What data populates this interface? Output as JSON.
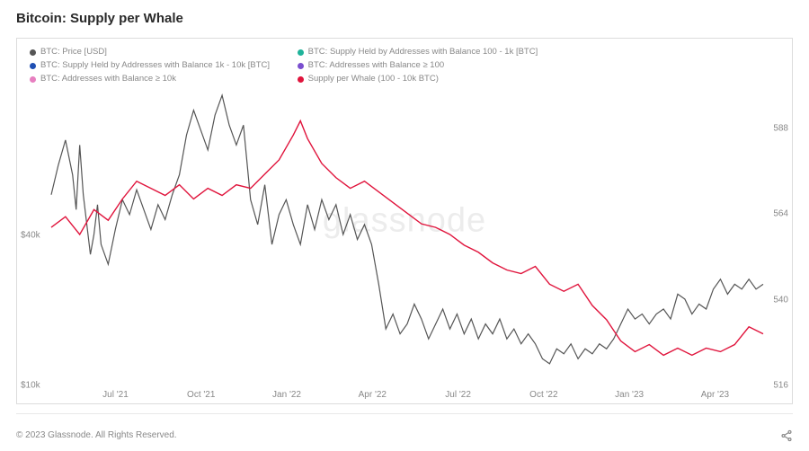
{
  "title": "Bitcoin: Supply per Whale",
  "footer": "© 2023 Glassnode. All Rights Reserved.",
  "watermark": "glassnode",
  "chart": {
    "type": "line",
    "background_color": "#ffffff",
    "border_color": "#dcdcdc",
    "grid_color": "transparent",
    "watermark_color": "rgba(150,150,150,0.18)",
    "legend": {
      "position": "top-left",
      "fontsize": 9.5,
      "text_color": "#888888",
      "columns": [
        [
          {
            "label": "BTC: Price [USD]",
            "color": "#555555"
          },
          {
            "label": "BTC: Supply Held by Addresses with Balance 1k - 10k [BTC]",
            "color": "#1f4fb3"
          },
          {
            "label": "BTC: Addresses with Balance ≥ 10k",
            "color": "#e77fc0"
          }
        ],
        [
          {
            "label": "BTC: Supply Held by Addresses with Balance 100 - 1k [BTC]",
            "color": "#1fb39a"
          },
          {
            "label": "BTC: Addresses with Balance ≥ 100",
            "color": "#7a4fcf"
          },
          {
            "label": "Supply per Whale (100 - 10k BTC)",
            "color": "#e0143c"
          }
        ]
      ]
    },
    "y_left": {
      "label_prefix": "$",
      "label_suffix": "k",
      "min": 10,
      "max": 70,
      "ticks": [
        10,
        40
      ],
      "tick_labels": [
        "$10k",
        "$40k"
      ],
      "fontsize": 10,
      "text_color": "#888888"
    },
    "y_right": {
      "min": 516,
      "max": 600,
      "ticks": [
        516,
        540,
        564,
        588
      ],
      "tick_labels": [
        "516",
        "540",
        "564",
        "588"
      ],
      "fontsize": 10,
      "text_color": "#888888"
    },
    "x_axis": {
      "ticks": [
        "Jul '21",
        "Oct '21",
        "Jan '22",
        "Apr '22",
        "Jul '22",
        "Oct '22",
        "Jan '23",
        "Apr '23"
      ],
      "positions_pct": [
        9,
        21,
        33,
        45,
        57,
        69,
        81,
        93
      ],
      "fontsize": 10,
      "text_color": "#888888"
    },
    "series": [
      {
        "name": "price",
        "axis": "left",
        "color": "#555555",
        "line_width": 1.2,
        "points": [
          [
            0,
            48
          ],
          [
            1,
            54
          ],
          [
            2,
            59
          ],
          [
            3,
            52
          ],
          [
            3.5,
            45
          ],
          [
            4,
            58
          ],
          [
            4.5,
            48
          ],
          [
            5,
            42
          ],
          [
            5.5,
            36
          ],
          [
            6,
            40
          ],
          [
            6.5,
            46
          ],
          [
            7,
            38
          ],
          [
            8,
            34
          ],
          [
            9,
            41
          ],
          [
            10,
            47
          ],
          [
            11,
            44
          ],
          [
            12,
            49
          ],
          [
            13,
            45
          ],
          [
            14,
            41
          ],
          [
            15,
            46
          ],
          [
            16,
            43
          ],
          [
            17,
            48
          ],
          [
            18,
            52
          ],
          [
            19,
            60
          ],
          [
            20,
            65
          ],
          [
            21,
            61
          ],
          [
            22,
            57
          ],
          [
            23,
            64
          ],
          [
            24,
            68
          ],
          [
            25,
            62
          ],
          [
            26,
            58
          ],
          [
            27,
            62
          ],
          [
            28,
            47
          ],
          [
            29,
            42
          ],
          [
            30,
            50
          ],
          [
            31,
            38
          ],
          [
            32,
            44
          ],
          [
            33,
            47
          ],
          [
            34,
            42
          ],
          [
            35,
            38
          ],
          [
            36,
            46
          ],
          [
            37,
            41
          ],
          [
            38,
            47
          ],
          [
            39,
            43
          ],
          [
            40,
            46
          ],
          [
            41,
            40
          ],
          [
            42,
            44
          ],
          [
            43,
            39
          ],
          [
            44,
            42
          ],
          [
            45,
            38
          ],
          [
            46,
            30
          ],
          [
            47,
            21
          ],
          [
            48,
            24
          ],
          [
            49,
            20
          ],
          [
            50,
            22
          ],
          [
            51,
            26
          ],
          [
            52,
            23
          ],
          [
            53,
            19
          ],
          [
            54,
            22
          ],
          [
            55,
            25
          ],
          [
            56,
            21
          ],
          [
            57,
            24
          ],
          [
            58,
            20
          ],
          [
            59,
            23
          ],
          [
            60,
            19
          ],
          [
            61,
            22
          ],
          [
            62,
            20
          ],
          [
            63,
            23
          ],
          [
            64,
            19
          ],
          [
            65,
            21
          ],
          [
            66,
            18
          ],
          [
            67,
            20
          ],
          [
            68,
            18
          ],
          [
            69,
            15
          ],
          [
            70,
            14
          ],
          [
            71,
            17
          ],
          [
            72,
            16
          ],
          [
            73,
            18
          ],
          [
            74,
            15
          ],
          [
            75,
            17
          ],
          [
            76,
            16
          ],
          [
            77,
            18
          ],
          [
            78,
            17
          ],
          [
            79,
            19
          ],
          [
            80,
            22
          ],
          [
            81,
            25
          ],
          [
            82,
            23
          ],
          [
            83,
            24
          ],
          [
            84,
            22
          ],
          [
            85,
            24
          ],
          [
            86,
            25
          ],
          [
            87,
            23
          ],
          [
            88,
            28
          ],
          [
            89,
            27
          ],
          [
            90,
            24
          ],
          [
            91,
            26
          ],
          [
            92,
            25
          ],
          [
            93,
            29
          ],
          [
            94,
            31
          ],
          [
            95,
            28
          ],
          [
            96,
            30
          ],
          [
            97,
            29
          ],
          [
            98,
            31
          ],
          [
            99,
            29
          ],
          [
            100,
            30
          ]
        ]
      },
      {
        "name": "supply_per_whale",
        "axis": "right",
        "color": "#e0143c",
        "line_width": 1.4,
        "points": [
          [
            0,
            560
          ],
          [
            2,
            563
          ],
          [
            4,
            558
          ],
          [
            6,
            565
          ],
          [
            8,
            562
          ],
          [
            10,
            568
          ],
          [
            12,
            573
          ],
          [
            14,
            571
          ],
          [
            16,
            569
          ],
          [
            18,
            572
          ],
          [
            20,
            568
          ],
          [
            22,
            571
          ],
          [
            24,
            569
          ],
          [
            26,
            572
          ],
          [
            28,
            571
          ],
          [
            30,
            575
          ],
          [
            32,
            579
          ],
          [
            34,
            586
          ],
          [
            35,
            590
          ],
          [
            36,
            585
          ],
          [
            38,
            578
          ],
          [
            40,
            574
          ],
          [
            42,
            571
          ],
          [
            44,
            573
          ],
          [
            46,
            570
          ],
          [
            48,
            567
          ],
          [
            50,
            564
          ],
          [
            52,
            561
          ],
          [
            54,
            560
          ],
          [
            56,
            558
          ],
          [
            58,
            555
          ],
          [
            60,
            553
          ],
          [
            62,
            550
          ],
          [
            64,
            548
          ],
          [
            66,
            547
          ],
          [
            68,
            549
          ],
          [
            70,
            544
          ],
          [
            72,
            542
          ],
          [
            74,
            544
          ],
          [
            76,
            538
          ],
          [
            78,
            534
          ],
          [
            79,
            531
          ],
          [
            80,
            528
          ],
          [
            82,
            525
          ],
          [
            84,
            527
          ],
          [
            86,
            524
          ],
          [
            88,
            526
          ],
          [
            90,
            524
          ],
          [
            92,
            526
          ],
          [
            94,
            525
          ],
          [
            96,
            527
          ],
          [
            98,
            532
          ],
          [
            100,
            530
          ]
        ]
      }
    ]
  }
}
